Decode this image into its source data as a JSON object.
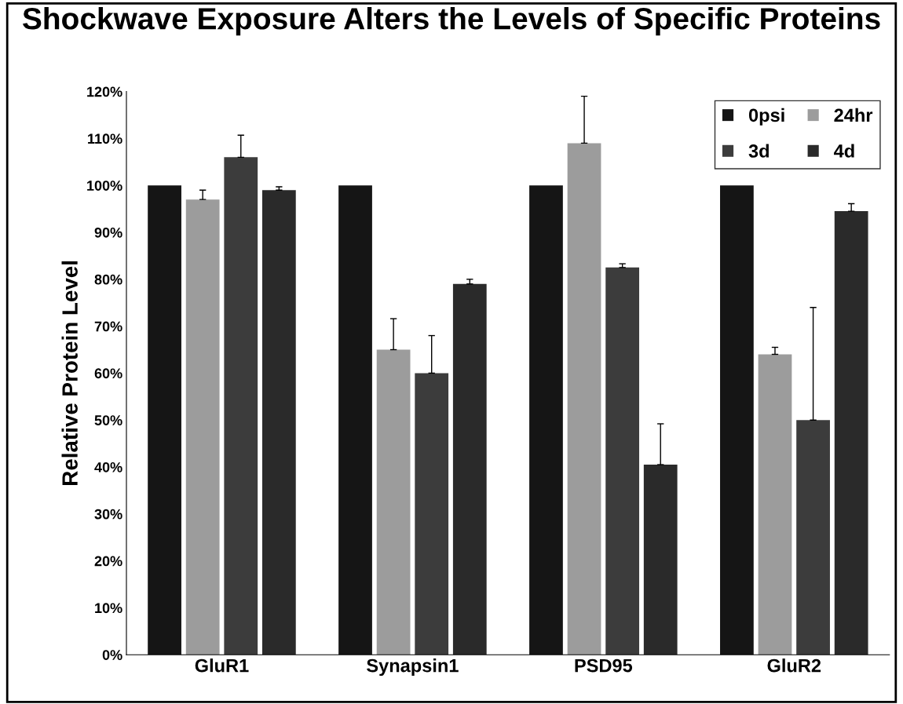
{
  "chart_data": {
    "type": "bar",
    "title": "Shockwave Exposure Alters the Levels of Specific Proteins",
    "ylabel": "Relative Protein Level",
    "categories": [
      "GluR1",
      "Synapsin1",
      "PSD95",
      "GluR2"
    ],
    "series": [
      {
        "name": "0psi",
        "color": "#151515",
        "values": [
          100,
          100,
          100,
          100
        ]
      },
      {
        "name": "24hr",
        "color": "#9c9c9c",
        "values": [
          97,
          65,
          109,
          64
        ],
        "errors": [
          2,
          6.6,
          10,
          1.5
        ]
      },
      {
        "name": "3d",
        "color": "#3c3c3c",
        "values": [
          106,
          60,
          82.5,
          50
        ],
        "errors": [
          4.7,
          8,
          0.8,
          24
        ]
      },
      {
        "name": "4d",
        "color": "#2a2a2a",
        "values": [
          99,
          79,
          40.5,
          94.5
        ],
        "errors": [
          0.7,
          1,
          8.7,
          1.6
        ]
      }
    ],
    "ylim": [
      0,
      120
    ],
    "yticks": [
      {
        "value": 0,
        "label": "0%"
      },
      {
        "value": 10,
        "label": "10%"
      },
      {
        "value": 20,
        "label": "20%"
      },
      {
        "value": 30,
        "label": "30%"
      },
      {
        "value": 40,
        "label": "40%"
      },
      {
        "value": 50,
        "label": "50%"
      },
      {
        "value": 60,
        "label": "60%"
      },
      {
        "value": 70,
        "label": "70%"
      },
      {
        "value": 80,
        "label": "80%"
      },
      {
        "value": 90,
        "label": "90%"
      },
      {
        "value": 100,
        "label": "100%"
      },
      {
        "value": 110,
        "label": "110%"
      },
      {
        "value": 120,
        "label": "120%"
      }
    ],
    "legend": "top right",
    "grid": false
  }
}
